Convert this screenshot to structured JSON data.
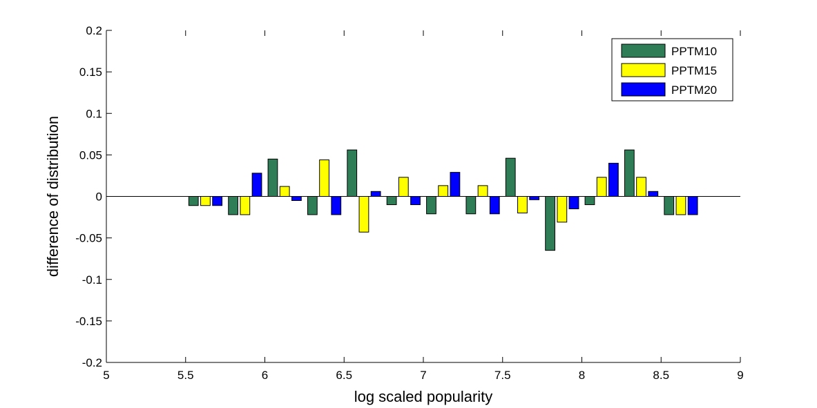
{
  "chart_data": {
    "type": "bar",
    "xlabel": "log scaled popularity",
    "ylabel": "difference of distribution",
    "xlim": [
      5,
      9
    ],
    "ylim": [
      -0.2,
      0.2
    ],
    "xticks": [
      "5",
      "5.5",
      "6",
      "6.5",
      "7",
      "7.5",
      "8",
      "8.5",
      "9"
    ],
    "yticks": [
      "-0.2",
      "-0.15",
      "-0.1",
      "-0.05",
      "0",
      "0.05",
      "0.1",
      "0.15",
      "0.2"
    ],
    "grid": false,
    "legend_position": "top-right",
    "x": [
      5.625,
      5.875,
      6.125,
      6.375,
      6.625,
      6.875,
      7.125,
      7.375,
      7.625,
      7.875,
      8.125,
      8.375,
      8.625
    ],
    "series": [
      {
        "name": "PPTM10",
        "color": "#2e7d57",
        "values": [
          -0.011,
          -0.022,
          0.045,
          -0.022,
          0.056,
          -0.01,
          -0.021,
          -0.021,
          0.046,
          -0.065,
          -0.01,
          0.056,
          -0.022
        ]
      },
      {
        "name": "PPTM15",
        "color": "#ffff00",
        "values": [
          -0.011,
          -0.022,
          0.012,
          0.044,
          -0.043,
          0.023,
          0.013,
          0.013,
          -0.02,
          -0.031,
          0.023,
          0.023,
          -0.022
        ]
      },
      {
        "name": "PPTM20",
        "color": "#0000ff",
        "values": [
          -0.011,
          0.028,
          -0.005,
          -0.022,
          0.006,
          -0.01,
          0.029,
          -0.021,
          -0.004,
          -0.015,
          0.04,
          0.006,
          -0.022
        ]
      }
    ]
  }
}
